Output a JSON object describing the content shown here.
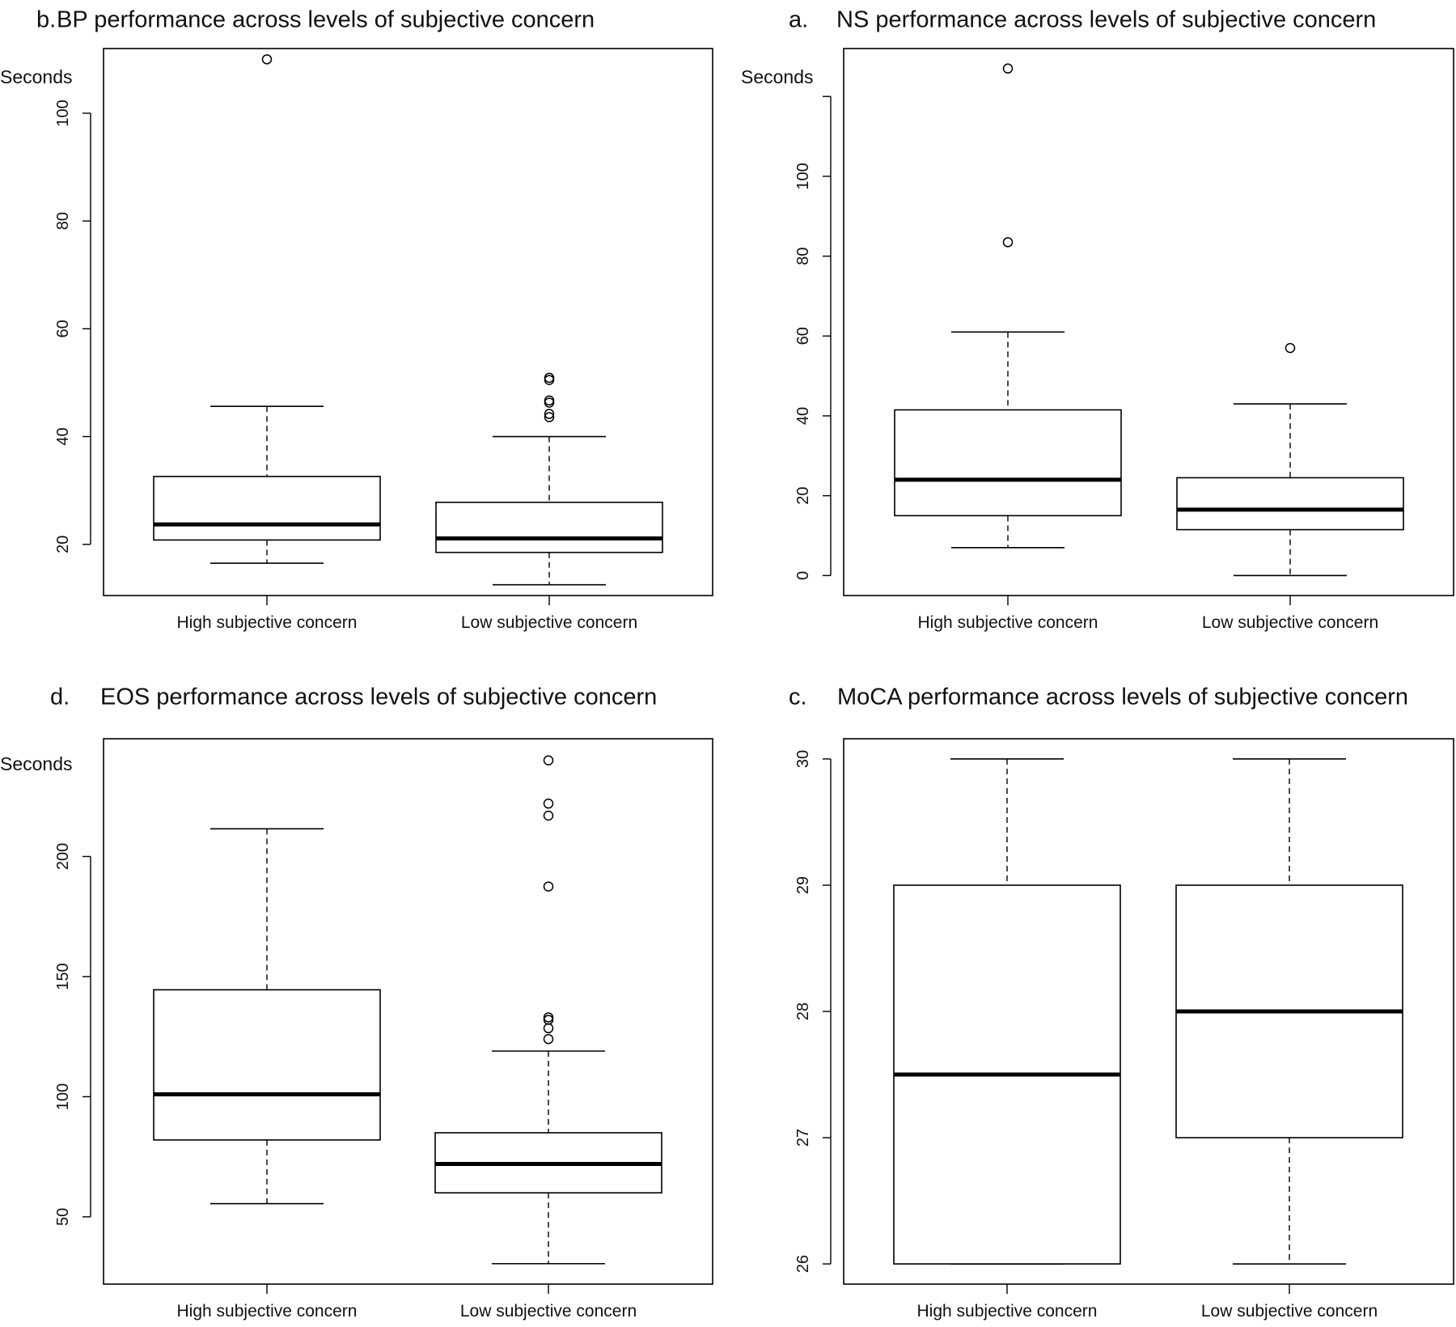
{
  "chart_data": [
    {
      "type": "box",
      "panel_letter": "b.",
      "title": "BP performance across levels of subjective concern",
      "ylabel": "Seconds",
      "ylim": [
        10.5,
        112
      ],
      "yticks": [
        20,
        40,
        60,
        80,
        100
      ],
      "categories": [
        "High subjective concern",
        "Low subjective concern"
      ],
      "boxes": [
        {
          "whisker_low": 16.5,
          "q1": 20.8,
          "median": 23.7,
          "q3": 32.6,
          "whisker_high": 45.6,
          "outliers": [
            110
          ]
        },
        {
          "whisker_low": 12.5,
          "q1": 18.5,
          "median": 21.1,
          "q3": 27.8,
          "whisker_high": 40.0,
          "outliers": [
            43.6,
            44.2,
            46.3,
            46.7,
            50.5,
            50.9
          ]
        }
      ]
    },
    {
      "type": "box",
      "panel_letter": "a.",
      "title": "NS performance across levels of subjective concern",
      "ylabel": "Seconds",
      "ylim": [
        -5,
        132
      ],
      "yticks": [
        0,
        20,
        40,
        60,
        80,
        100
      ],
      "categories": [
        "High subjective concern",
        "Low subjective concern"
      ],
      "boxes": [
        {
          "whisker_low": 7,
          "q1": 15,
          "median": 24,
          "q3": 41.5,
          "whisker_high": 61,
          "outliers": [
            83.5,
            127
          ]
        },
        {
          "whisker_low": 0,
          "q1": 11.5,
          "median": 16.5,
          "q3": 24.5,
          "whisker_high": 43,
          "outliers": [
            57
          ]
        }
      ]
    },
    {
      "type": "box",
      "panel_letter": "d.",
      "title": "EOS performance across levels of subjective concern",
      "ylabel": "Seconds",
      "ylim": [
        22,
        249
      ],
      "yticks": [
        50,
        100,
        150,
        200
      ],
      "categories": [
        "High subjective concern",
        "Low subjective concern"
      ],
      "boxes": [
        {
          "whisker_low": 55.5,
          "q1": 82,
          "median": 101,
          "q3": 144.5,
          "whisker_high": 211.5,
          "outliers": []
        },
        {
          "whisker_low": 30.5,
          "q1": 60,
          "median": 72,
          "q3": 85,
          "whisker_high": 119,
          "outliers": [
            124,
            128.5,
            132,
            133,
            187.5,
            217,
            222,
            240
          ]
        }
      ]
    },
    {
      "type": "box",
      "panel_letter": "c.",
      "title": "MoCA performance across levels of subjective concern",
      "ylabel": "",
      "ylim": [
        25.84,
        30.16
      ],
      "yticks": [
        26,
        27,
        28,
        29,
        30
      ],
      "categories": [
        "High subjective concern",
        "Low subjective concern"
      ],
      "boxes": [
        {
          "whisker_low": 26,
          "q1": 26,
          "median": 27.5,
          "q3": 29,
          "whisker_high": 30,
          "outliers": []
        },
        {
          "whisker_low": 26,
          "q1": 27,
          "median": 28,
          "q3": 29,
          "whisker_high": 30,
          "outliers": []
        }
      ]
    }
  ]
}
